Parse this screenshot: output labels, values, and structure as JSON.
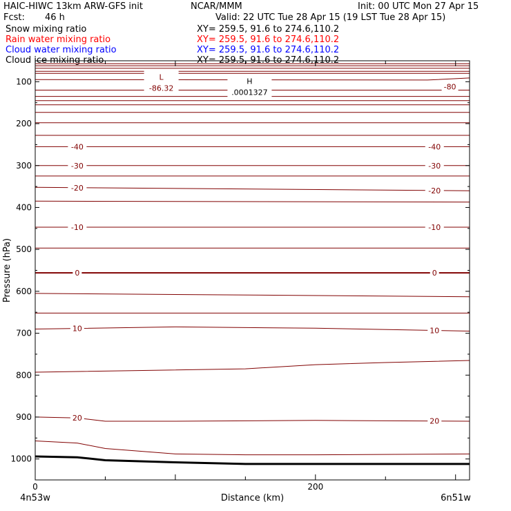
{
  "header": {
    "title_left": "HAIC-HIWC 13km ARW-GFS init",
    "center_label": "NCAR/MMM",
    "init": "Init: 00 UTC Mon 27 Apr 15",
    "fcst_label": "Fcst:",
    "fcst_value": "46 h",
    "valid": "Valid: 22 UTC Tue 28 Apr 15 (19 LST Tue 28 Apr 15)"
  },
  "fields": [
    {
      "name": "Snow mixing ratio",
      "xy": "XY= 259.5, 91.6 to 274.6,110.2",
      "color": "#000000"
    },
    {
      "name": "Rain water mixing ratio",
      "xy": "XY= 259.5, 91.6 to 274.6,110.2",
      "color": "#ff0000"
    },
    {
      "name": "Cloud water mixing ratio",
      "xy": "XY= 259.5, 91.6 to 274.6,110.2",
      "color": "#0000ff"
    },
    {
      "name": "Cloud ice mixing ratio",
      "xy": "XY= 259.5, 91.6 to 274.6,110.2",
      "color": "#000000"
    }
  ],
  "chart_data": {
    "type": "line",
    "xlabel": "Distance (km)",
    "ylabel": "Pressure (hPa)",
    "xlim": [
      0,
      310
    ],
    "ylim": [
      1050,
      50
    ],
    "x_ticks": [
      0,
      200
    ],
    "y_ticks": [
      100,
      200,
      300,
      400,
      500,
      600,
      700,
      800,
      900,
      1000
    ],
    "left_endpoint": "4n53w",
    "right_endpoint": "6n51w",
    "contour_color": "#800000",
    "terrain_color": "#000000",
    "terrain": {
      "x": [
        0,
        30,
        50,
        100,
        150,
        200,
        250,
        310
      ],
      "p": [
        994,
        996,
        1003,
        1008,
        1012,
        1012,
        1012,
        1012
      ]
    },
    "series": [
      {
        "label": "",
        "x": [
          0,
          310
        ],
        "p": [
          57,
          57
        ]
      },
      {
        "label": "",
        "x": [
          0,
          310
        ],
        "p": [
          62,
          62
        ]
      },
      {
        "label": "",
        "x": [
          0,
          310
        ],
        "p": [
          68,
          68
        ]
      },
      {
        "label": "",
        "x": [
          0,
          310
        ],
        "p": [
          75,
          75
        ]
      },
      {
        "label": "",
        "x": [
          0,
          310
        ],
        "p": [
          80,
          80
        ]
      },
      {
        "label": "",
        "x": [
          0,
          280,
          310
        ],
        "p": [
          95,
          96,
          91
        ]
      },
      {
        "label": "",
        "x": [
          0,
          310
        ],
        "p": [
          120,
          120
        ]
      },
      {
        "label": "",
        "x": [
          0,
          310
        ],
        "p": [
          135,
          135
        ]
      },
      {
        "label": "",
        "x": [
          0,
          310
        ],
        "p": [
          145,
          145
        ]
      },
      {
        "label": "",
        "x": [
          0,
          310
        ],
        "p": [
          155,
          155
        ]
      },
      {
        "label": "",
        "x": [
          0,
          310
        ],
        "p": [
          173,
          173
        ]
      },
      {
        "label": "",
        "x": [
          0,
          310
        ],
        "p": [
          198,
          198
        ]
      },
      {
        "label": "",
        "x": [
          0,
          310
        ],
        "p": [
          228,
          228
        ]
      },
      {
        "label": "-40",
        "x": [
          0,
          310
        ],
        "p": [
          255,
          255
        ]
      },
      {
        "label": "-30",
        "x": [
          0,
          310
        ],
        "p": [
          300,
          300
        ]
      },
      {
        "label": "",
        "x": [
          0,
          310
        ],
        "p": [
          325,
          325
        ]
      },
      {
        "label": "-20",
        "x": [
          0,
          310
        ],
        "p": [
          352,
          360
        ]
      },
      {
        "label": "",
        "x": [
          0,
          310
        ],
        "p": [
          385,
          387
        ]
      },
      {
        "label": "-10",
        "x": [
          0,
          310
        ],
        "p": [
          447,
          447
        ]
      },
      {
        "label": "",
        "x": [
          0,
          310
        ],
        "p": [
          497,
          497
        ]
      },
      {
        "label": "0",
        "x": [
          0,
          310
        ],
        "p": [
          556,
          556
        ],
        "bold": true
      },
      {
        "label": "",
        "x": [
          0,
          310
        ],
        "p": [
          605,
          613
        ]
      },
      {
        "label": "",
        "x": [
          0,
          310
        ],
        "p": [
          652,
          652
        ]
      },
      {
        "label": "10",
        "x": [
          0,
          100,
          200,
          310
        ],
        "p": [
          690,
          685,
          688,
          695
        ]
      },
      {
        "label": "",
        "x": [
          0,
          150,
          200,
          250,
          310
        ],
        "p": [
          793,
          785,
          775,
          770,
          765
        ]
      },
      {
        "label": "20",
        "x": [
          0,
          30,
          50,
          100,
          200,
          310
        ],
        "p": [
          900,
          902,
          910,
          910,
          908,
          910
        ]
      },
      {
        "label": "",
        "x": [
          0,
          30,
          50,
          100,
          150,
          200,
          310
        ],
        "p": [
          957,
          962,
          975,
          988,
          990,
          990,
          988
        ]
      }
    ],
    "annotations": [
      {
        "text": "L",
        "value": "-86.32",
        "x": 90,
        "p": 102
      },
      {
        "text": "H",
        "value": ".0001327",
        "x": 153,
        "p": 112
      }
    ],
    "side_labels": [
      {
        "text": "-80",
        "p": 112
      }
    ]
  }
}
